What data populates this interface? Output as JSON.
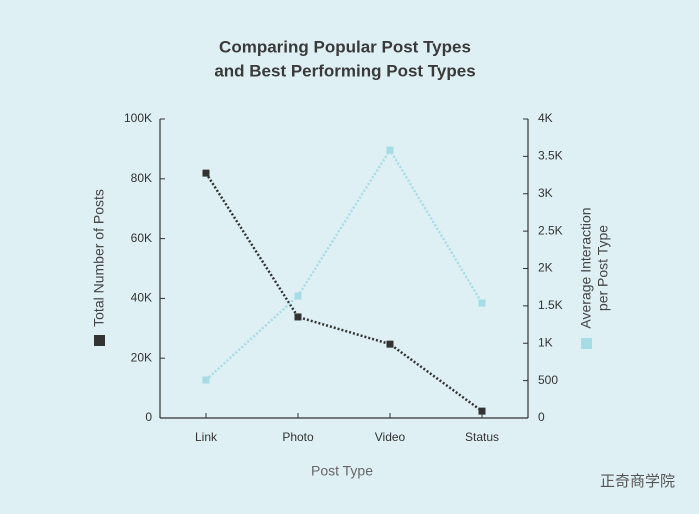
{
  "chart_data": {
    "type": "line",
    "title": [
      "Comparing Popular Post Types",
      "and Best Performing Post Types"
    ],
    "xlabel": "Post Type",
    "ylabel": "Total Number of Posts",
    "y2label": [
      "Average Interaction",
      "per Post Type"
    ],
    "categories": [
      "Link",
      "Photo",
      "Video",
      "Status"
    ],
    "series": [
      {
        "color": "#333333",
        "values": [
          81900,
          33800,
          24700,
          2300
        ],
        "axis": "y"
      },
      {
        "color": "#a6dce5",
        "values": [
          508,
          1632,
          3585,
          1538
        ],
        "axis": "y2"
      }
    ],
    "ylim": [
      0,
      100000
    ],
    "yticks": [
      0,
      {
        "value": 20000,
        "label": "20K"
      },
      {
        "value": 40000,
        "label": "40K"
      },
      {
        "value": 60000,
        "label": "60K"
      },
      {
        "value": 80000,
        "label": "80K"
      },
      {
        "value": 100000,
        "label": "100K"
      }
    ],
    "y2lim": [
      0,
      4000
    ],
    "y2ticks": [
      0,
      500,
      {
        "value": 1000,
        "label": "1K"
      },
      {
        "value": 1500,
        "label": "1.5K"
      },
      {
        "value": 2000,
        "label": "2K"
      },
      {
        "value": 2500,
        "label": "2.5K"
      },
      {
        "value": 3000,
        "label": "3K"
      },
      {
        "value": 3500,
        "label": "3.5K"
      },
      {
        "value": 4000,
        "label": "4K"
      }
    ]
  },
  "watermark": "正奇商学院"
}
